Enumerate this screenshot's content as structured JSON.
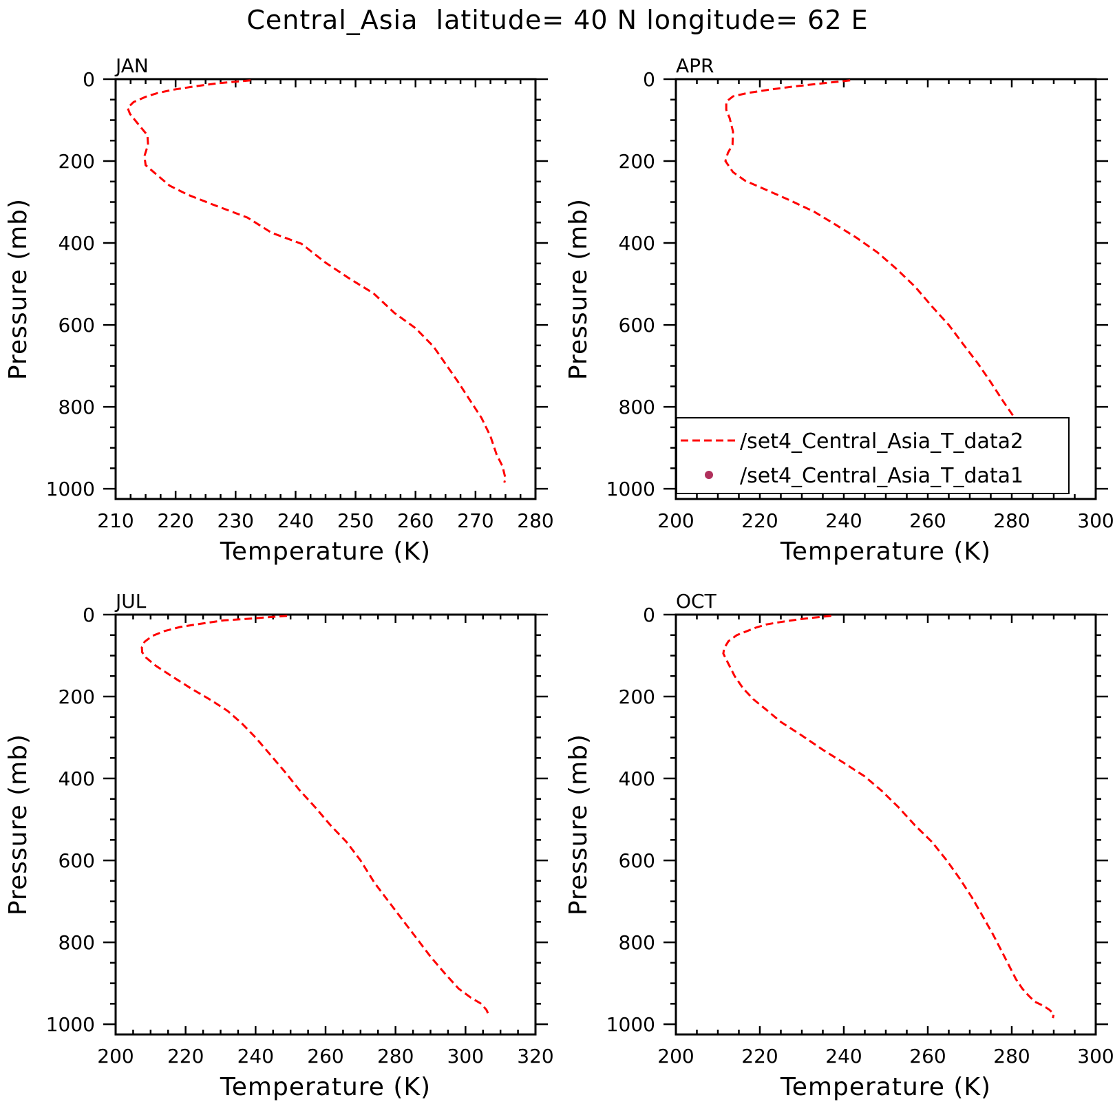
{
  "figure": {
    "title": "Central_Asia  latitude= 40 N longitude= 62 E"
  },
  "colors": {
    "data2": "#ff0000",
    "data1": "#b0305c"
  },
  "chart_data": [
    {
      "type": "line",
      "panel_label": "JAN",
      "xlabel": "Temperature (K)",
      "ylabel": "Pressure (mb)",
      "xlim": [
        210,
        280
      ],
      "ylim": [
        1025,
        0
      ],
      "xticks": [
        210,
        220,
        230,
        240,
        250,
        260,
        270,
        280
      ],
      "yticks": [
        0,
        200,
        400,
        600,
        800,
        1000
      ],
      "grid": false,
      "series": [
        {
          "name": "/set4_Central_Asia_T_data2",
          "style": "dashed",
          "x": [
            232.5,
            227,
            223,
            219.5,
            217,
            215.2,
            213,
            212,
            212.4,
            213.5,
            215.3,
            215.4,
            214.8,
            215,
            217,
            219,
            222,
            226,
            232,
            236,
            241,
            245,
            249,
            253,
            256.5,
            260,
            263,
            265,
            267,
            269,
            271,
            272.5,
            273.5,
            274.5,
            275,
            274.8
          ],
          "y": [
            3,
            10,
            18,
            26,
            34,
            42,
            56,
            70,
            85,
            105,
            137,
            160,
            188,
            210,
            235,
            260,
            282,
            305,
            338,
            375,
            402,
            448,
            487,
            523,
            571,
            608,
            653,
            695,
            737,
            782,
            827,
            872,
            916,
            945,
            975,
            985
          ]
        }
      ]
    },
    {
      "type": "line",
      "panel_label": "APR",
      "xlabel": "Temperature (K)",
      "ylabel": "Pressure (mb)",
      "xlim": [
        200,
        300
      ],
      "ylim": [
        1025,
        0
      ],
      "xticks": [
        200,
        220,
        240,
        260,
        280,
        300
      ],
      "yticks": [
        0,
        200,
        400,
        600,
        800,
        1000
      ],
      "grid": false,
      "legend": {
        "position": "bottom-right",
        "labels": [
          "/set4_Central_Asia_T_data2",
          "/set4_Central_Asia_T_data1"
        ]
      },
      "series": [
        {
          "name": "/set4_Central_Asia_T_data2",
          "style": "dashed",
          "x": [
            241.5,
            235,
            228,
            222,
            217,
            213.6,
            212,
            212,
            212.8,
            213.6,
            213.5,
            212.4,
            211.8,
            213.6,
            216.5,
            221,
            227,
            233,
            238,
            243,
            248,
            252.5,
            257,
            261,
            265,
            268.5,
            272,
            275,
            278,
            281,
            284,
            286.5,
            289,
            291.5
          ],
          "y": [
            3,
            10,
            18,
            26,
            34,
            42,
            55,
            75,
            95,
            128,
            160,
            180,
            200,
            227,
            248,
            268,
            295,
            324,
            355,
            387,
            423,
            463,
            507,
            555,
            600,
            648,
            695,
            740,
            787,
            832,
            877,
            920,
            955,
            980
          ]
        },
        {
          "name": "/set4_Central_Asia_T_data1",
          "style": "markers",
          "x": [],
          "y": []
        }
      ]
    },
    {
      "type": "line",
      "panel_label": "JUL",
      "xlabel": "Temperature (K)",
      "ylabel": "Pressure (mb)",
      "xlim": [
        200,
        320
      ],
      "ylim": [
        1025,
        0
      ],
      "xticks": [
        200,
        220,
        240,
        260,
        280,
        300,
        320
      ],
      "yticks": [
        0,
        200,
        400,
        600,
        800,
        1000
      ],
      "grid": false,
      "series": [
        {
          "name": "/set4_Central_Asia_T_data2",
          "style": "dashed",
          "x": [
            249,
            244,
            238,
            231,
            224.5,
            218.5,
            214,
            210.5,
            208.3,
            207.5,
            207.6,
            208.7,
            211.5,
            216,
            221.5,
            227.5,
            232,
            236,
            240,
            244,
            248.5,
            252.5,
            257,
            261.5,
            266,
            270,
            274,
            278,
            282,
            286,
            290,
            294,
            298,
            301.5,
            304.5,
            306,
            306.5
          ],
          "y": [
            3,
            6,
            10,
            14,
            22,
            30,
            40,
            52,
            66,
            80,
            92,
            105,
            125,
            150,
            180,
            210,
            235,
            265,
            300,
            340,
            385,
            428,
            470,
            515,
            555,
            600,
            655,
            700,
            745,
            790,
            835,
            875,
            913,
            935,
            950,
            965,
            975
          ]
        }
      ]
    },
    {
      "type": "line",
      "panel_label": "OCT",
      "xlabel": "Temperature (K)",
      "ylabel": "Pressure (mb)",
      "xlim": [
        200,
        300
      ],
      "ylim": [
        1025,
        0
      ],
      "xticks": [
        200,
        220,
        240,
        260,
        280,
        300
      ],
      "yticks": [
        0,
        200,
        400,
        600,
        800,
        1000
      ],
      "grid": false,
      "series": [
        {
          "name": "/set4_Central_Asia_T_data2",
          "style": "dashed",
          "x": [
            237,
            233,
            229,
            225,
            221.5,
            219,
            217,
            214.5,
            212.5,
            211.5,
            211.3,
            212.5,
            214,
            216,
            218.5,
            221.5,
            225,
            230,
            235,
            240,
            245,
            249,
            253,
            257,
            261,
            264.5,
            267.5,
            270.5,
            273,
            275.5,
            277.5,
            279.5,
            281,
            282.5,
            284,
            285.5,
            287.5,
            289,
            290,
            289.8
          ],
          "y": [
            3,
            7,
            12,
            18,
            24,
            32,
            40,
            50,
            65,
            82,
            95,
            120,
            150,
            180,
            207,
            232,
            262,
            295,
            330,
            362,
            395,
            430,
            470,
            515,
            555,
            600,
            643,
            690,
            735,
            780,
            820,
            860,
            890,
            913,
            930,
            945,
            955,
            965,
            975,
            985
          ]
        }
      ]
    }
  ]
}
